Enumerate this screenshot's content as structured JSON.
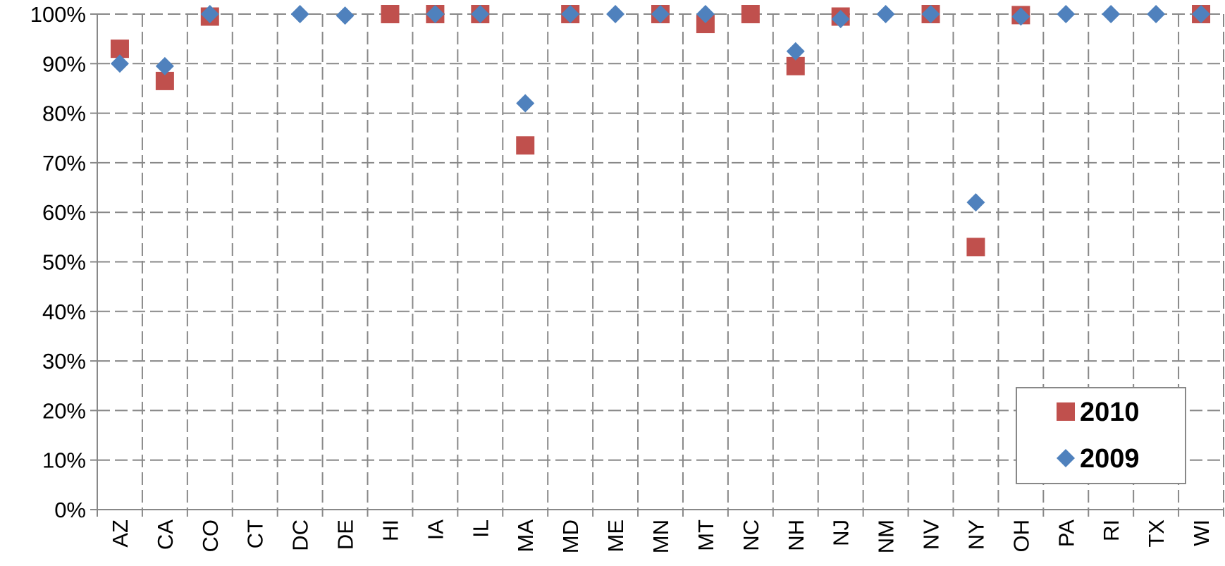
{
  "chart_data": {
    "type": "scatter",
    "title": "",
    "xlabel": "",
    "ylabel": "",
    "categories": [
      "AZ",
      "CA",
      "CO",
      "CT",
      "DC",
      "DE",
      "HI",
      "IA",
      "IL",
      "MA",
      "MD",
      "ME",
      "MN",
      "MT",
      "NC",
      "NH",
      "NJ",
      "NM",
      "NV",
      "NY",
      "OH",
      "PA",
      "RI",
      "TX",
      "WI"
    ],
    "ylim": [
      0,
      100
    ],
    "y_ticks": [
      "0%",
      "10%",
      "20%",
      "30%",
      "40%",
      "50%",
      "60%",
      "70%",
      "80%",
      "90%",
      "100%"
    ],
    "grid": true,
    "legend_position": "bottom-right",
    "series": [
      {
        "name": "2010",
        "marker": "square",
        "color": "#c0504d",
        "values": [
          93,
          86.5,
          99.5,
          null,
          null,
          null,
          100,
          100,
          100,
          73.5,
          100,
          null,
          100,
          98,
          100,
          89.5,
          99.5,
          null,
          100,
          53,
          99.8,
          null,
          null,
          null,
          100
        ]
      },
      {
        "name": "2009",
        "marker": "diamond",
        "color": "#4f81bd",
        "values": [
          90,
          89.5,
          100,
          null,
          100,
          99.7,
          null,
          100,
          100,
          82,
          100,
          100,
          100,
          100,
          null,
          92.5,
          99,
          100,
          100,
          62,
          99.5,
          100,
          100,
          100,
          100
        ]
      }
    ]
  }
}
